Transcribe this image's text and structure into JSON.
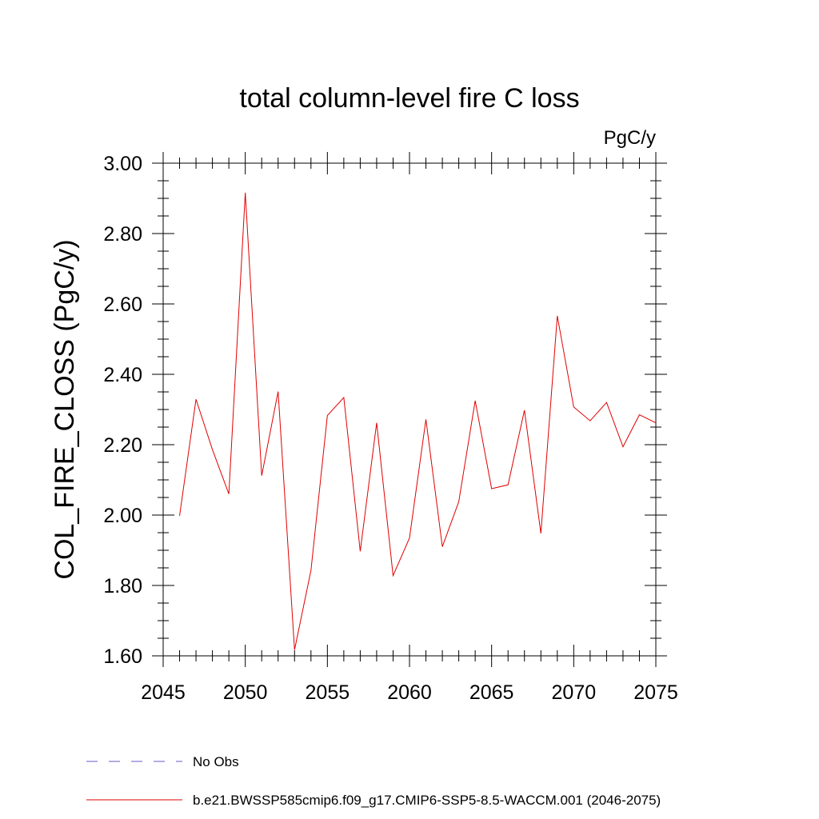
{
  "chart_data": {
    "type": "line",
    "title": "total column-level fire C loss",
    "units": "PgC/y",
    "xlabel": "",
    "ylabel": "COL_FIRE_CLOSS  (PgC/y)",
    "xlim": [
      2045,
      2075
    ],
    "ylim": [
      1.6,
      3.0
    ],
    "xticks": [
      2045,
      2050,
      2055,
      2060,
      2065,
      2070,
      2075
    ],
    "xtick_labels": [
      "2045",
      "2050",
      "2055",
      "2060",
      "2065",
      "2070",
      "2075"
    ],
    "yticks": [
      1.6,
      1.8,
      2.0,
      2.2,
      2.4,
      2.6,
      2.8,
      3.0
    ],
    "ytick_labels": [
      "1.60",
      "1.80",
      "2.00",
      "2.20",
      "2.40",
      "2.60",
      "2.80",
      "3.00"
    ],
    "grid": false,
    "legend_position": "bottom",
    "series": [
      {
        "name": "No Obs",
        "color": "#6a5acd",
        "style": "dashed",
        "x": [],
        "values": []
      },
      {
        "name": "b.e21.BWSSP585cmip6.f09_g17.CMIP6-SSP5-8.5-WACCM.001 (2046-2075)",
        "color": "#e00000",
        "style": "solid",
        "x": [
          2046,
          2047,
          2048,
          2049,
          2050,
          2051,
          2052,
          2053,
          2054,
          2055,
          2056,
          2057,
          2058,
          2059,
          2060,
          2061,
          2062,
          2063,
          2064,
          2065,
          2066,
          2067,
          2068,
          2069,
          2070,
          2071,
          2072,
          2073,
          2074,
          2075
        ],
        "values": [
          1.998,
          2.329,
          2.186,
          2.06,
          2.916,
          2.112,
          2.351,
          1.617,
          1.843,
          2.283,
          2.334,
          1.897,
          2.262,
          1.828,
          1.935,
          2.272,
          1.91,
          2.038,
          2.325,
          2.075,
          2.086,
          2.298,
          1.948,
          2.566,
          2.307,
          2.268,
          2.32,
          2.194,
          2.285,
          2.262
        ]
      }
    ]
  }
}
